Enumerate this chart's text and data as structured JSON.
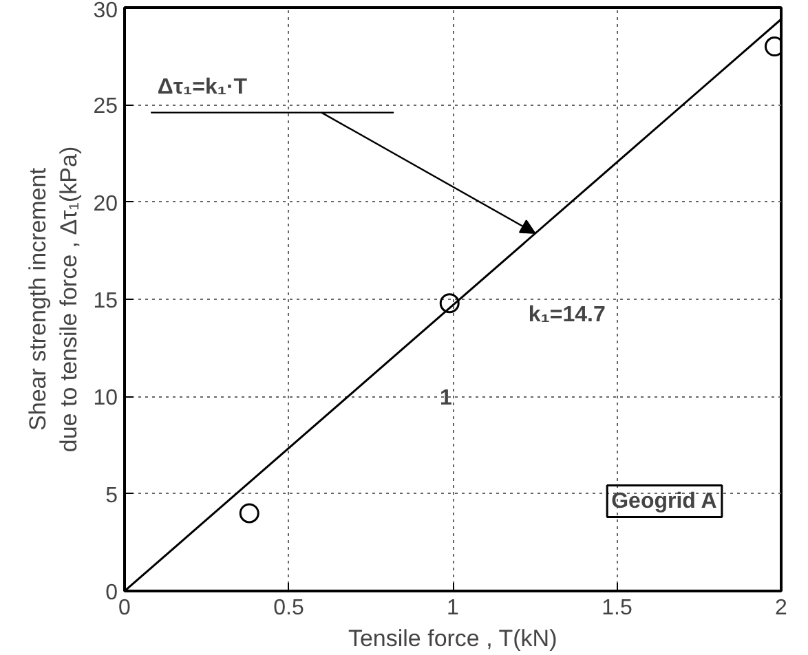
{
  "chart_data": {
    "type": "scatter",
    "xlabel": "Tensile force , T(kN)",
    "ylabel": "Shear strength increment\ndue to tensile force , Δτ₁(kPa)",
    "xlim": [
      0,
      2
    ],
    "ylim": [
      0,
      30
    ],
    "xticks": [
      0,
      0.5,
      1,
      1.5,
      2
    ],
    "yticks": [
      0,
      5,
      10,
      15,
      20,
      25,
      30
    ],
    "grid": true,
    "series": [
      {
        "marker": "circle",
        "color": "#000000",
        "x": [
          0.38,
          0.99,
          1.98
        ],
        "values": [
          4,
          14.8,
          28
        ]
      },
      {
        "type": "line",
        "color": "#000000",
        "x": [
          0,
          2
        ],
        "values": [
          0,
          29.4
        ],
        "line_style": "solid"
      }
    ],
    "annotations": [
      "Δτ₁=k₁·T",
      "k₁=14.7",
      "1",
      "Geogrid A"
    ]
  }
}
